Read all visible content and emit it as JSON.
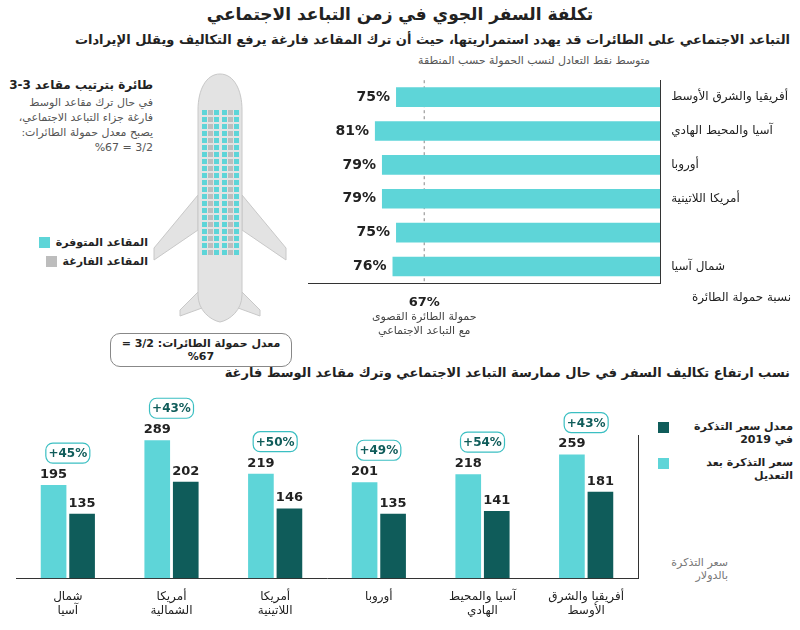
{
  "title": "تكلفة السفر الجوي في زمن التباعد الاجتماعي",
  "diagram": {
    "title": "طائرة بترتيب مقاعد 3-3",
    "description": "في حال ترك مقاعد الوسط فارغة جزاء التباعد الاجتماعي، يصبح معدل حمولة الطائرات: 3/2 = 67%",
    "legend": [
      {
        "label": "المقاعد المتوفرة",
        "color": "#5ed5d8"
      },
      {
        "label": "المقاعد الفارغة",
        "color": "#bdbdbd"
      }
    ],
    "caption": "معدل حمولة الطائرات: 3/2 = 67%"
  },
  "chart_data": [
    {
      "type": "bar",
      "title": "التباعد الاجتماعي على الطائرات قد يهدد استمراريتها، حيث أن ترك المقاعد فارغة يرفع التكاليف ويقلل الإيرادات",
      "subtitle": "متوسط نقط التعادل لنسب الحمولة حسب المنطقة",
      "orientation": "horizontal",
      "categories": [
        "أفريقيا والشرق الأوسط",
        "آسيا والمحيط الهادي",
        "أوروبا",
        "أمريكا اللاتينية",
        null,
        "شمال آسيا"
      ],
      "values": [
        75,
        81,
        79,
        79,
        75,
        76
      ],
      "value_labels": [
        "75%",
        "81%",
        "79%",
        "79%",
        "75%",
        "76%"
      ],
      "data_labels": true,
      "color": "#5ed5d8",
      "x_label": "نسبة حمولة الطائرة",
      "xlim": [
        0,
        100
      ],
      "xticks": [
        {
          "value": 67,
          "label": "67%"
        }
      ],
      "reference_line": {
        "value": 67,
        "label": "حمولة الطائرة القصوى مع التباعد الاجتماعي"
      },
      "grid": false
    },
    {
      "type": "bar",
      "title": "نسب ارتفاع تكاليف السفر في حال ممارسة التباعد الاجتماعي وترك مقاعد الوسط فارغة",
      "categories": [
        "شمال آسيا",
        "أمريكا الشمالية",
        "أمريكا اللاتينية",
        "أوروبا",
        "آسيا والمحيط الهادي",
        "أفريقيا والشرق الأوسط"
      ],
      "series": [
        {
          "name": "سعر التذكرة بعد التعديل",
          "color": "#5ed5d8",
          "values": [
            195,
            289,
            219,
            201,
            218,
            259
          ]
        },
        {
          "name": "معدل سعر التذكرة في 2019",
          "color": "#0f5c5a",
          "values": [
            135,
            202,
            146,
            135,
            141,
            181
          ]
        }
      ],
      "change_labels": [
        "+45%",
        "+43%",
        "+50%",
        "+49%",
        "+54%",
        "+43%"
      ],
      "y_label": "سعر التذكرة بالدولار",
      "ylim": [
        0,
        300
      ],
      "tick_labels": false,
      "data_labels": true,
      "legend": "right",
      "grid": false
    }
  ]
}
